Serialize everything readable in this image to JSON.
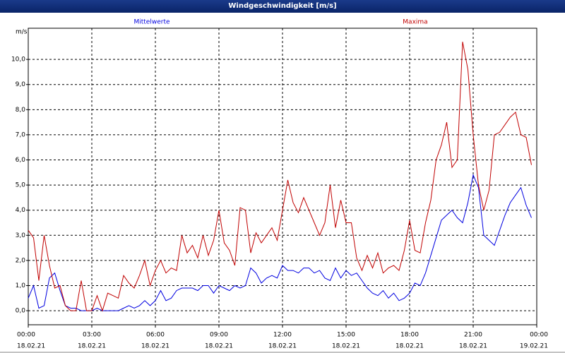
{
  "chart_data": {
    "type": "line",
    "title": "Windgeschwindigkeit [m/s]",
    "y_unit": "m/s",
    "x": [
      0,
      0.25,
      0.5,
      0.75,
      1,
      1.25,
      1.5,
      1.75,
      2,
      2.25,
      2.5,
      2.75,
      3,
      3.25,
      3.5,
      3.75,
      4,
      4.25,
      4.5,
      4.75,
      5,
      5.25,
      5.5,
      5.75,
      6,
      6.25,
      6.5,
      6.75,
      7,
      7.25,
      7.5,
      7.75,
      8,
      8.25,
      8.5,
      8.75,
      9,
      9.25,
      9.5,
      9.75,
      10,
      10.25,
      10.5,
      10.75,
      11,
      11.25,
      11.5,
      11.75,
      12,
      12.25,
      12.5,
      12.75,
      13,
      13.25,
      13.5,
      13.75,
      14,
      14.25,
      14.5,
      14.75,
      15,
      15.25,
      15.5,
      15.75,
      16,
      16.25,
      16.5,
      16.75,
      17,
      17.25,
      17.5,
      17.75,
      18,
      18.25,
      18.5,
      18.75,
      19,
      19.25,
      19.5,
      19.75,
      20,
      20.25,
      20.5,
      20.75,
      21,
      21.25,
      21.5,
      21.75,
      22,
      22.25,
      22.5,
      22.75,
      23,
      23.25,
      23.5,
      23.75
    ],
    "series": [
      {
        "name": "Mittelwerte",
        "color": "#0000e0",
        "values": [
          0.5,
          1.0,
          0.1,
          0.2,
          1.3,
          1.5,
          0.8,
          0.2,
          0.1,
          0.1,
          0.0,
          0.0,
          0.0,
          0.1,
          0.0,
          0.0,
          0.0,
          0.0,
          0.1,
          0.2,
          0.1,
          0.2,
          0.4,
          0.2,
          0.4,
          0.8,
          0.4,
          0.5,
          0.8,
          0.9,
          0.9,
          0.9,
          0.8,
          1.0,
          1.0,
          0.7,
          1.0,
          0.9,
          0.8,
          1.0,
          0.9,
          1.0,
          1.7,
          1.5,
          1.1,
          1.3,
          1.4,
          1.3,
          1.8,
          1.6,
          1.6,
          1.5,
          1.7,
          1.7,
          1.5,
          1.6,
          1.3,
          1.2,
          1.7,
          1.3,
          1.6,
          1.4,
          1.5,
          1.2,
          0.9,
          0.7,
          0.6,
          0.8,
          0.5,
          0.7,
          0.4,
          0.5,
          0.7,
          1.1,
          1.0,
          1.5,
          2.2,
          2.9,
          3.6,
          3.8,
          4.0,
          3.7,
          3.5,
          4.3,
          5.4,
          4.9,
          3.0,
          2.8,
          2.6,
          3.2,
          3.8,
          4.3,
          4.6,
          4.9,
          4.2,
          3.7
        ]
      },
      {
        "name": "Maxima",
        "color": "#c00000",
        "values": [
          3.2,
          2.9,
          1.2,
          3.0,
          1.8,
          0.9,
          1.0,
          0.2,
          0.0,
          0.0,
          1.2,
          0.0,
          0.0,
          0.6,
          0.0,
          0.7,
          0.6,
          0.5,
          1.4,
          1.1,
          0.9,
          1.4,
          2.0,
          1.0,
          1.6,
          2.0,
          1.5,
          1.7,
          1.6,
          3.0,
          2.3,
          2.6,
          2.1,
          3.0,
          2.2,
          2.8,
          4.0,
          2.7,
          2.4,
          1.8,
          4.1,
          4.0,
          2.3,
          3.1,
          2.7,
          3.0,
          3.3,
          2.8,
          4.0,
          5.2,
          4.3,
          3.9,
          4.5,
          4.0,
          3.5,
          3.0,
          3.5,
          5.0,
          3.3,
          4.4,
          3.5,
          3.5,
          2.1,
          1.6,
          2.2,
          1.7,
          2.3,
          1.5,
          1.7,
          1.8,
          1.6,
          2.4,
          3.6,
          2.4,
          2.3,
          3.5,
          4.4,
          6.0,
          6.6,
          7.5,
          5.7,
          6.0,
          10.7,
          9.6,
          7.0,
          5.0,
          4.0,
          4.8,
          7.0,
          7.1,
          7.4,
          7.7,
          7.9,
          7.0,
          6.9,
          5.8
        ]
      }
    ],
    "xlim": [
      0,
      24
    ],
    "xticks": [
      {
        "value": 0,
        "label": "00:00"
      },
      {
        "value": 3,
        "label": "03:00"
      },
      {
        "value": 6,
        "label": "06:00"
      },
      {
        "value": 9,
        "label": "09:00"
      },
      {
        "value": 12,
        "label": "12:00"
      },
      {
        "value": 15,
        "label": "15:00"
      },
      {
        "value": 18,
        "label": "18:00"
      },
      {
        "value": 21,
        "label": "21:00"
      },
      {
        "value": 24,
        "label": "00:00"
      }
    ],
    "xtick_dates": [
      "18.02.21",
      "18.02.21",
      "18.02.21",
      "18.02.21",
      "18.02.21",
      "18.02.21",
      "18.02.21",
      "18.02.21",
      "19.02.21"
    ],
    "ylim": [
      -0.56,
      11.24
    ],
    "yticks": [
      {
        "value": 0,
        "label": "0,0"
      },
      {
        "value": 1,
        "label": "1,0"
      },
      {
        "value": 2,
        "label": "2,0"
      },
      {
        "value": 3,
        "label": "3,0"
      },
      {
        "value": 4,
        "label": "4,0"
      },
      {
        "value": 5,
        "label": "5,0"
      },
      {
        "value": 6,
        "label": "6,0"
      },
      {
        "value": 7,
        "label": "7,0"
      },
      {
        "value": 8,
        "label": "8,0"
      },
      {
        "value": 9,
        "label": "9,0"
      },
      {
        "value": 10,
        "label": "10,0"
      }
    ],
    "grid": true
  }
}
